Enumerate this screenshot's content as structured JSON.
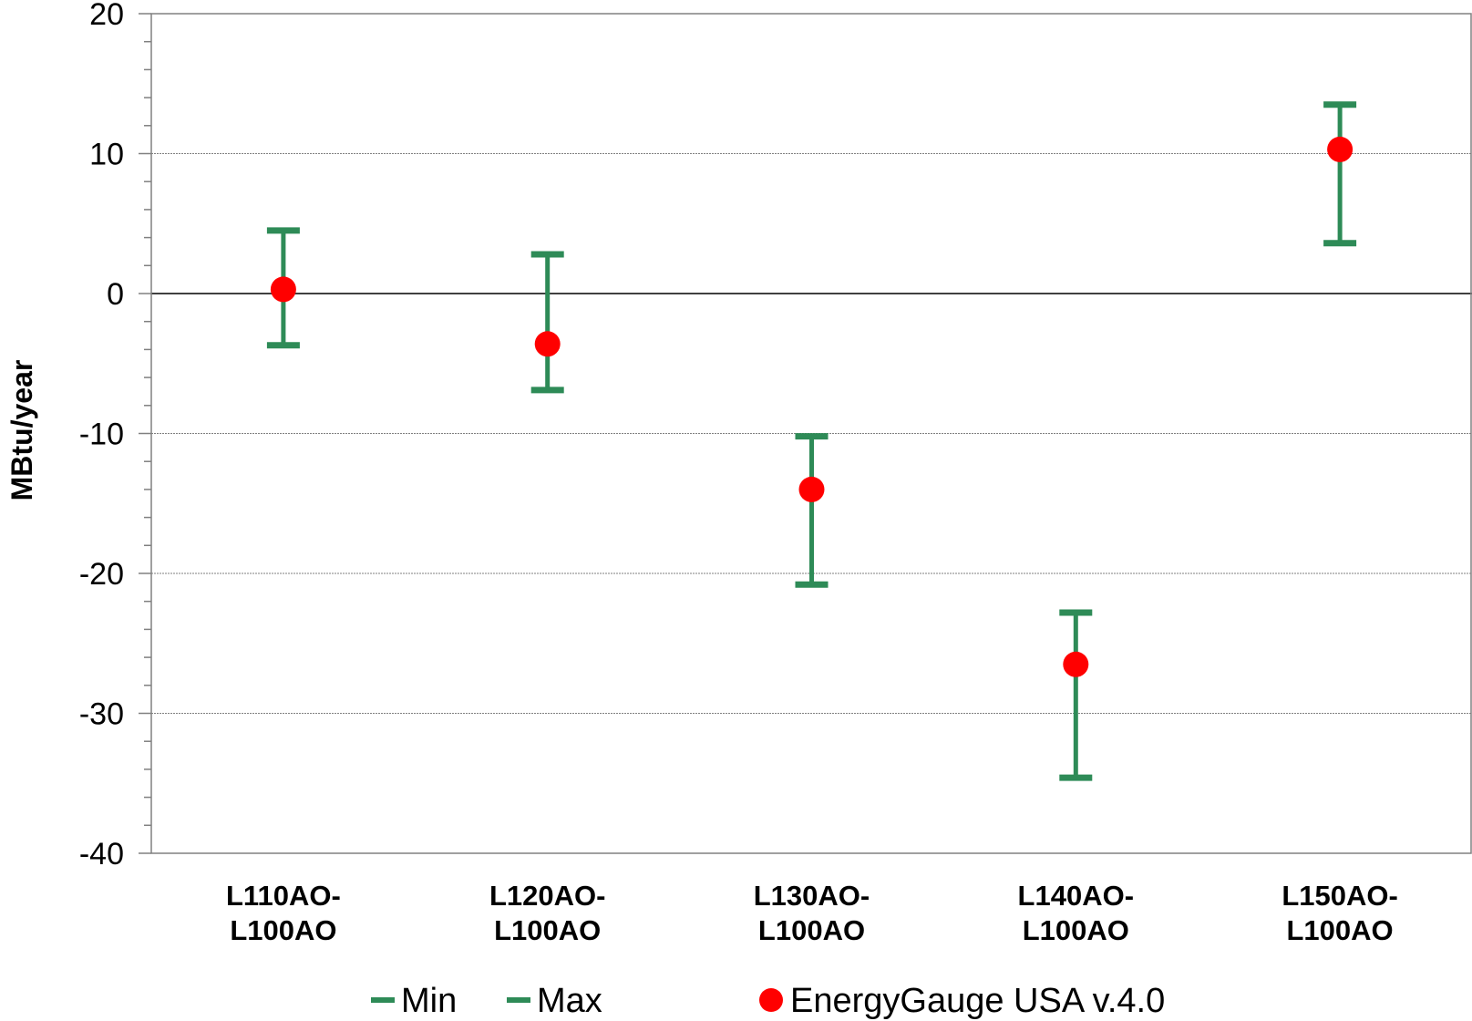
{
  "chart_data": {
    "type": "scatter",
    "ylabel": "MBtu/year",
    "xlabel": "",
    "ylim": [
      -40,
      20
    ],
    "yticks": [
      "20",
      "10",
      "0",
      "-10",
      "-20",
      "-30",
      "-40"
    ],
    "ytick_values": [
      20,
      10,
      0,
      -10,
      -20,
      -30,
      -40
    ],
    "grid": "horizontal major gridlines",
    "categories": [
      [
        "L110AO-",
        "L100AO"
      ],
      [
        "L120AO-",
        "L100AO"
      ],
      [
        "L130AO-",
        "L100AO"
      ],
      [
        "L140AO-",
        "L100AO"
      ],
      [
        "L150AO-",
        "L100AO"
      ]
    ],
    "series": [
      {
        "name": "Min",
        "values": [
          -3.7,
          -6.9,
          -20.8,
          -34.6,
          3.6
        ]
      },
      {
        "name": "Max",
        "values": [
          4.5,
          2.8,
          -10.2,
          -22.8,
          13.5
        ]
      },
      {
        "name": "EnergyGauge USA v.4.0",
        "values": [
          0.3,
          -3.6,
          -14.0,
          -26.5,
          10.3
        ]
      }
    ],
    "legend_position": "bottom",
    "colors": {
      "range": "#2e8b57",
      "point": "#ff0000",
      "axis": "#808080",
      "grid": "#808080"
    }
  }
}
